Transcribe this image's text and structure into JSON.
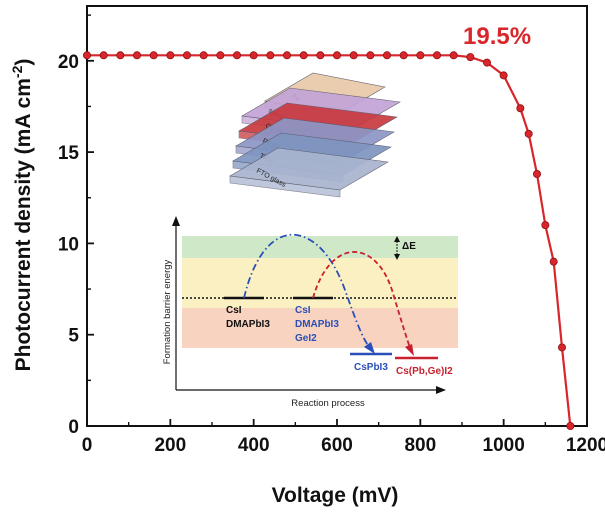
{
  "chart_data": {
    "type": "line",
    "xlabel": "Voltage (mV)",
    "ylabel_main": "Photocurrent density (mA cm",
    "ylabel_sup": "-2",
    "ylabel_close": ")",
    "xlim": [
      0,
      1200
    ],
    "ylim": [
      0,
      23
    ],
    "x_ticks": [
      "0",
      "200",
      "400",
      "600",
      "800",
      "1000",
      "1200"
    ],
    "y_ticks": [
      "0",
      "5",
      "10",
      "15",
      "20"
    ],
    "annotation": "19.5%",
    "series_color": "#d8262b",
    "series": [
      {
        "x": [
          0,
          40,
          80,
          120,
          160,
          200,
          240,
          280,
          320,
          360,
          400,
          440,
          480,
          520,
          560,
          600,
          640,
          680,
          720,
          760,
          800,
          840,
          880,
          920,
          960,
          1000,
          1040,
          1060,
          1080,
          1100,
          1120,
          1140,
          1160
        ],
        "y": [
          20.3,
          20.3,
          20.3,
          20.3,
          20.3,
          20.3,
          20.3,
          20.3,
          20.3,
          20.3,
          20.3,
          20.3,
          20.3,
          20.3,
          20.3,
          20.3,
          20.3,
          20.3,
          20.3,
          20.3,
          20.3,
          20.3,
          20.3,
          20.2,
          19.9,
          19.2,
          17.4,
          16.0,
          13.8,
          11.0,
          9.0,
          4.3,
          0
        ]
      }
    ]
  },
  "inset": {
    "y_label": "Formation barrier energy",
    "x_label": "Reaction process",
    "delta_label": "ΔE",
    "start_a": [
      "CsI",
      "DMAPbI3"
    ],
    "start_b": [
      "CsI",
      "DMAPbI3",
      "GeI2"
    ],
    "product_a": "CsPbI3",
    "product_b": "Cs(Pb,Ge)I2",
    "band_colors": [
      "#cfe8c8",
      "#fbf0c2",
      "#f8d3bf"
    ],
    "path_colors": [
      "#2b4fb8",
      "#c8202e"
    ]
  },
  "device_stack": {
    "layers": [
      "Au",
      "spiro-OMeTAD",
      "Cs(Pb,Ge)I2",
      "PCBA",
      "TiO2",
      "FTO glass"
    ],
    "colors": [
      "#e9c9a8",
      "#c3a3d6",
      "#c83a3f",
      "#8d96c6",
      "#7e95c0",
      "#a9b5cf"
    ]
  }
}
